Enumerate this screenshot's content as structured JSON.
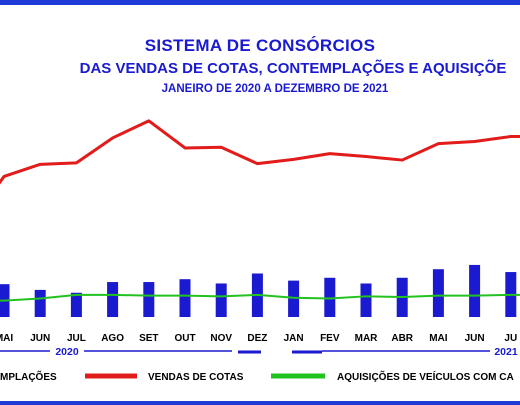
{
  "chart_data": {
    "type": "bar+line",
    "title": "SISTEMA DE CONSÓRCIOS",
    "subtitle": "DAS VENDAS DE COTAS, CONTEMPLAÇÕES E AQUISIÇÕE",
    "period": "JANEIRO DE 2020 A DEZEMBRO DE 2021",
    "categories": [
      "MAI",
      "JUN",
      "JUL",
      "AGO",
      "SET",
      "OUT",
      "NOV",
      "DEZ",
      "JAN",
      "FEV",
      "MAR",
      "ABR",
      "MAI",
      "JUN",
      "JU"
    ],
    "year_labels": [
      "2020",
      "2021"
    ],
    "series": [
      {
        "name": "CONTEMPLAÇÕES",
        "kind": "bar",
        "color": "#1a1ad0",
        "values": [
          46,
          38,
          34,
          49,
          49,
          53,
          47,
          61,
          51,
          55,
          47,
          55,
          67,
          73,
          63
        ]
      },
      {
        "name": "VENDAS DE COTAS",
        "kind": "line",
        "color": "#e21b1b",
        "values": [
          197,
          214,
          216,
          251,
          275,
          237,
          238,
          215,
          221,
          229,
          225,
          220,
          243,
          246,
          253
        ]
      },
      {
        "name": "AQUISIÇÕES DE VEÍCULOS COM CA",
        "kind": "line",
        "color": "#22c21f",
        "values": [
          23,
          26,
          31,
          31,
          30,
          30,
          29,
          31,
          27,
          26,
          29,
          28,
          30,
          30,
          31
        ]
      }
    ],
    "legend": [
      "MPLAÇÕES",
      "VENDAS DE COTAS",
      "AQUISIÇÕES DE VEÍCULOS COM CA"
    ],
    "ylim": [
      0,
      300
    ],
    "grid": false,
    "legend_position": "bottom"
  }
}
